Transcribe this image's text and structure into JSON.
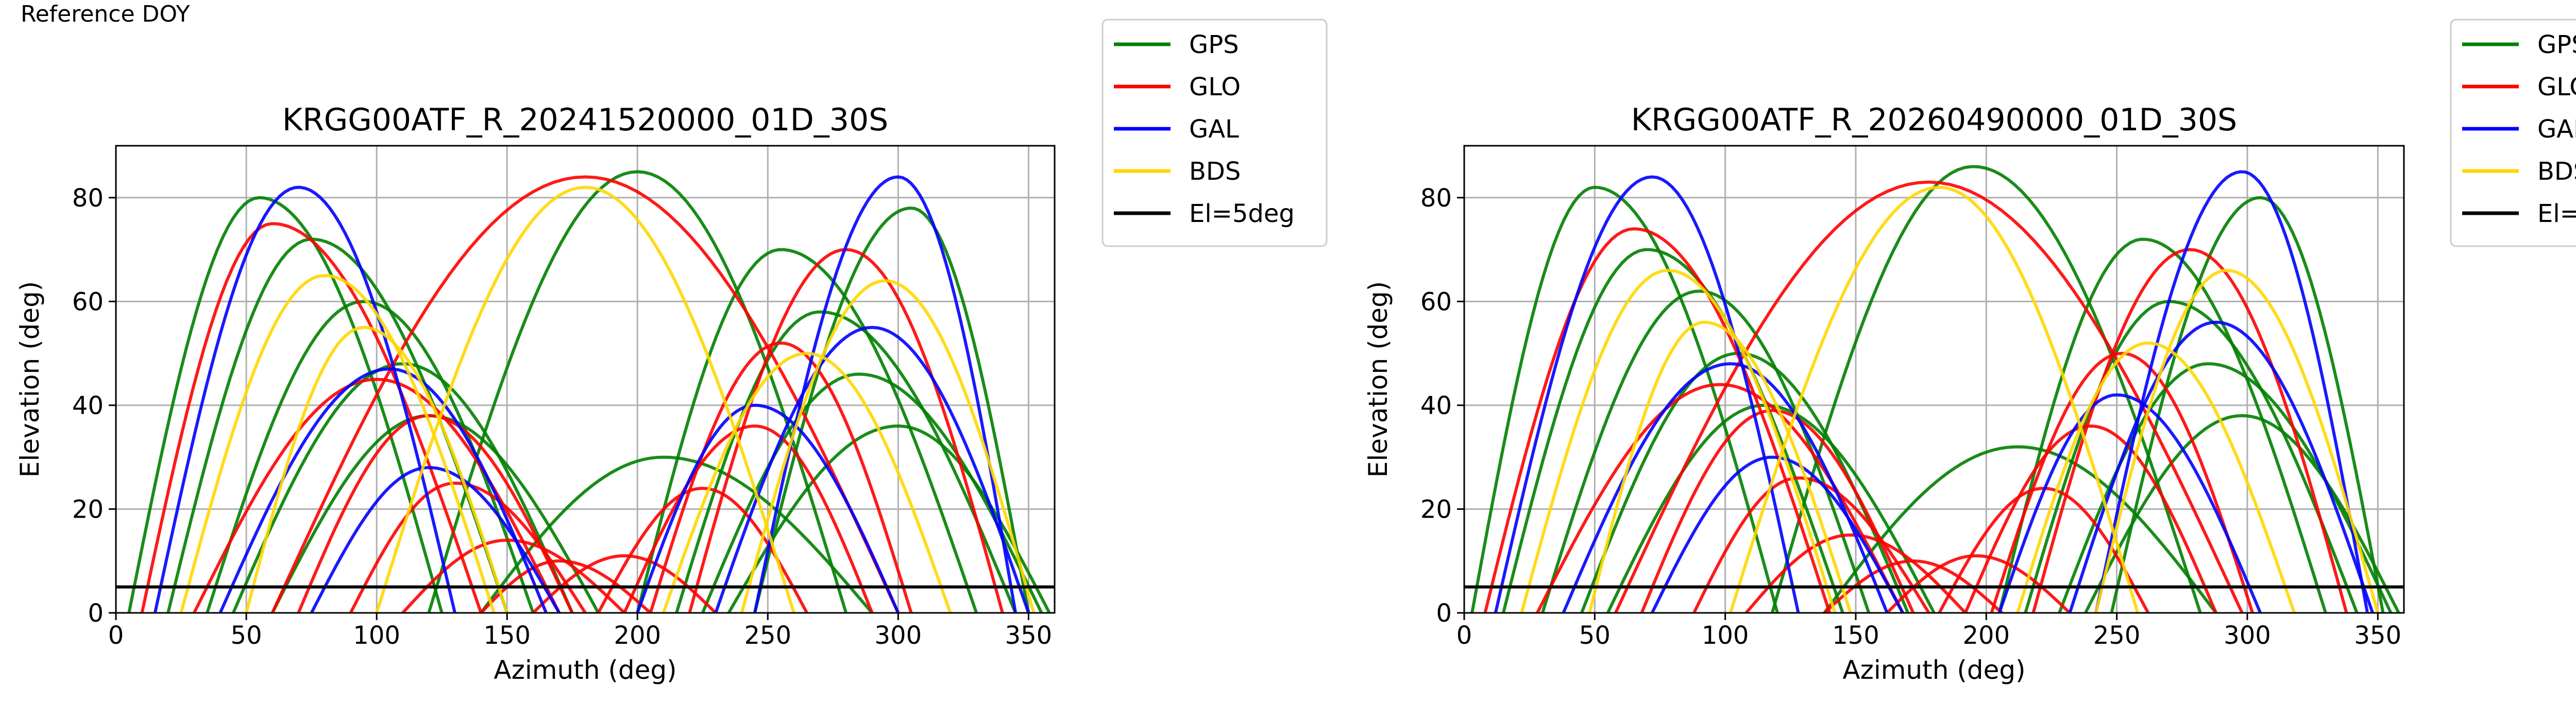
{
  "figure": {
    "header": "Reference DOY"
  },
  "legend": [
    {
      "label": "GPS",
      "color": "#008000",
      "icon": "line-swatch"
    },
    {
      "label": "GLO",
      "color": "#ff0000",
      "icon": "line-swatch"
    },
    {
      "label": "GAL",
      "color": "#0000ff",
      "icon": "line-swatch"
    },
    {
      "label": "BDS",
      "color": "#ffd700",
      "icon": "line-swatch"
    },
    {
      "label": "El=5deg",
      "color": "#000000",
      "icon": "line-swatch"
    }
  ],
  "chart_data": [
    {
      "type": "scatter",
      "title": "KRGG00ATF_R_20241520000_01D_30S",
      "xlabel": "Azimuth (deg)",
      "ylabel": "Elevation (deg)",
      "xlim": [
        0,
        360
      ],
      "ylim": [
        0,
        90
      ],
      "xticks": [
        0,
        50,
        100,
        150,
        200,
        250,
        300,
        350
      ],
      "yticks": [
        0,
        20,
        40,
        60,
        80
      ],
      "grid": true,
      "legend_position": "outside-right-top",
      "reference_line": {
        "name": "El=5deg",
        "y": 5,
        "color": "#000000"
      },
      "series": [
        {
          "name": "GPS",
          "color": "#008000",
          "tracks": [
            {
              "rise_az": 5,
              "peak_az": 55,
              "set_az": 125,
              "peak_el": 80
            },
            {
              "rise_az": 20,
              "peak_az": 75,
              "set_az": 150,
              "peak_el": 72
            },
            {
              "rise_az": 35,
              "peak_az": 95,
              "set_az": 160,
              "peak_el": 60
            },
            {
              "rise_az": 45,
              "peak_az": 110,
              "set_az": 175,
              "peak_el": 48
            },
            {
              "rise_az": 60,
              "peak_az": 120,
              "set_az": 185,
              "peak_el": 38
            },
            {
              "rise_az": 200,
              "peak_az": 255,
              "set_az": 330,
              "peak_el": 70
            },
            {
              "rise_az": 215,
              "peak_az": 270,
              "set_az": 345,
              "peak_el": 58
            },
            {
              "rise_az": 225,
              "peak_az": 285,
              "set_az": 355,
              "peak_el": 46
            },
            {
              "rise_az": 235,
              "peak_az": 300,
              "set_az": 358,
              "peak_el": 36
            },
            {
              "rise_az": 245,
              "peak_az": 305,
              "set_az": 350,
              "peak_el": 78
            },
            {
              "rise_az": 120,
              "peak_az": 200,
              "set_az": 280,
              "peak_el": 85
            },
            {
              "rise_az": 140,
              "peak_az": 210,
              "set_az": 290,
              "peak_el": 30
            }
          ]
        },
        {
          "name": "GLO",
          "color": "#ff0000",
          "tracks": [
            {
              "rise_az": 10,
              "peak_az": 60,
              "set_az": 140,
              "peak_el": 75
            },
            {
              "rise_az": 30,
              "peak_az": 100,
              "set_az": 170,
              "peak_el": 45
            },
            {
              "rise_az": 70,
              "peak_az": 120,
              "set_az": 175,
              "peak_el": 38
            },
            {
              "rise_az": 90,
              "peak_az": 130,
              "set_az": 180,
              "peak_el": 25
            },
            {
              "rise_az": 110,
              "peak_az": 150,
              "set_az": 195,
              "peak_el": 14
            },
            {
              "rise_az": 140,
              "peak_az": 170,
              "set_az": 205,
              "peak_el": 10
            },
            {
              "rise_az": 160,
              "peak_az": 195,
              "set_az": 230,
              "peak_el": 11
            },
            {
              "rise_az": 185,
              "peak_az": 225,
              "set_az": 265,
              "peak_el": 24
            },
            {
              "rise_az": 195,
              "peak_az": 245,
              "set_az": 290,
              "peak_el": 36
            },
            {
              "rise_az": 205,
              "peak_az": 255,
              "set_az": 305,
              "peak_el": 52
            },
            {
              "rise_az": 220,
              "peak_az": 280,
              "set_az": 340,
              "peak_el": 70
            },
            {
              "rise_az": 60,
              "peak_az": 180,
              "set_az": 300,
              "peak_el": 84
            }
          ]
        },
        {
          "name": "GAL",
          "color": "#0000ff",
          "tracks": [
            {
              "rise_az": 15,
              "peak_az": 70,
              "set_az": 130,
              "peak_el": 82
            },
            {
              "rise_az": 40,
              "peak_az": 105,
              "set_az": 165,
              "peak_el": 47
            },
            {
              "rise_az": 75,
              "peak_az": 120,
              "set_az": 170,
              "peak_el": 28
            },
            {
              "rise_az": 200,
              "peak_az": 245,
              "set_az": 300,
              "peak_el": 40
            },
            {
              "rise_az": 230,
              "peak_az": 290,
              "set_az": 350,
              "peak_el": 55
            },
            {
              "rise_az": 245,
              "peak_az": 300,
              "set_az": 345,
              "peak_el": 84
            }
          ]
        },
        {
          "name": "BDS",
          "color": "#ffd700",
          "tracks": [
            {
              "rise_az": 25,
              "peak_az": 80,
              "set_az": 145,
              "peak_el": 65
            },
            {
              "rise_az": 50,
              "peak_az": 95,
              "set_az": 150,
              "peak_el": 55
            },
            {
              "rise_az": 210,
              "peak_az": 265,
              "set_az": 320,
              "peak_el": 50
            },
            {
              "rise_az": 240,
              "peak_az": 295,
              "set_az": 352,
              "peak_el": 64
            },
            {
              "rise_az": 100,
              "peak_az": 180,
              "set_az": 260,
              "peak_el": 82
            }
          ]
        }
      ]
    },
    {
      "type": "scatter",
      "title": "KRGG00ATF_R_20260490000_01D_30S",
      "xlabel": "Azimuth (deg)",
      "ylabel": "Elevation (deg)",
      "xlim": [
        0,
        360
      ],
      "ylim": [
        0,
        90
      ],
      "xticks": [
        0,
        50,
        100,
        150,
        200,
        250,
        300,
        350
      ],
      "yticks": [
        0,
        20,
        40,
        60,
        80
      ],
      "grid": true,
      "legend_position": "outside-right-top",
      "reference_line": {
        "name": "El=5deg",
        "y": 5,
        "color": "#000000"
      },
      "series": [
        {
          "name": "GPS",
          "color": "#008000",
          "tracks": [
            {
              "rise_az": 3,
              "peak_az": 50,
              "set_az": 120,
              "peak_el": 82
            },
            {
              "rise_az": 15,
              "peak_az": 70,
              "set_az": 145,
              "peak_el": 70
            },
            {
              "rise_az": 30,
              "peak_az": 90,
              "set_az": 155,
              "peak_el": 62
            },
            {
              "rise_az": 45,
              "peak_az": 105,
              "set_az": 170,
              "peak_el": 50
            },
            {
              "rise_az": 55,
              "peak_az": 115,
              "set_az": 180,
              "peak_el": 40
            },
            {
              "rise_az": 205,
              "peak_az": 260,
              "set_az": 330,
              "peak_el": 72
            },
            {
              "rise_az": 215,
              "peak_az": 270,
              "set_az": 342,
              "peak_el": 60
            },
            {
              "rise_az": 228,
              "peak_az": 285,
              "set_az": 355,
              "peak_el": 48
            },
            {
              "rise_az": 238,
              "peak_az": 298,
              "set_az": 358,
              "peak_el": 38
            },
            {
              "rise_az": 248,
              "peak_az": 305,
              "set_az": 352,
              "peak_el": 80
            },
            {
              "rise_az": 118,
              "peak_az": 195,
              "set_az": 282,
              "peak_el": 86
            },
            {
              "rise_az": 138,
              "peak_az": 212,
              "set_az": 288,
              "peak_el": 32
            }
          ]
        },
        {
          "name": "GLO",
          "color": "#ff0000",
          "tracks": [
            {
              "rise_az": 8,
              "peak_az": 65,
              "set_az": 140,
              "peak_el": 74
            },
            {
              "rise_az": 28,
              "peak_az": 98,
              "set_az": 168,
              "peak_el": 44
            },
            {
              "rise_az": 68,
              "peak_az": 118,
              "set_az": 172,
              "peak_el": 39
            },
            {
              "rise_az": 88,
              "peak_az": 128,
              "set_az": 178,
              "peak_el": 26
            },
            {
              "rise_az": 108,
              "peak_az": 148,
              "set_az": 192,
              "peak_el": 15
            },
            {
              "rise_az": 138,
              "peak_az": 172,
              "set_az": 206,
              "peak_el": 10
            },
            {
              "rise_az": 162,
              "peak_az": 196,
              "set_az": 232,
              "peak_el": 11
            },
            {
              "rise_az": 182,
              "peak_az": 222,
              "set_az": 262,
              "peak_el": 24
            },
            {
              "rise_az": 192,
              "peak_az": 240,
              "set_az": 288,
              "peak_el": 36
            },
            {
              "rise_az": 202,
              "peak_az": 252,
              "set_az": 302,
              "peak_el": 50
            },
            {
              "rise_az": 218,
              "peak_az": 278,
              "set_az": 338,
              "peak_el": 70
            },
            {
              "rise_az": 58,
              "peak_az": 178,
              "set_az": 298,
              "peak_el": 83
            }
          ]
        },
        {
          "name": "GAL",
          "color": "#0000ff",
          "tracks": [
            {
              "rise_az": 12,
              "peak_az": 72,
              "set_az": 128,
              "peak_el": 84
            },
            {
              "rise_az": 38,
              "peak_az": 102,
              "set_az": 162,
              "peak_el": 48
            },
            {
              "rise_az": 72,
              "peak_az": 118,
              "set_az": 168,
              "peak_el": 30
            },
            {
              "rise_az": 205,
              "peak_az": 250,
              "set_az": 305,
              "peak_el": 42
            },
            {
              "rise_az": 232,
              "peak_az": 288,
              "set_az": 348,
              "peak_el": 56
            },
            {
              "rise_az": 242,
              "peak_az": 298,
              "set_az": 346,
              "peak_el": 85
            }
          ]
        },
        {
          "name": "BDS",
          "color": "#ffd700",
          "tracks": [
            {
              "rise_az": 22,
              "peak_az": 78,
              "set_az": 142,
              "peak_el": 66
            },
            {
              "rise_az": 48,
              "peak_az": 92,
              "set_az": 148,
              "peak_el": 56
            },
            {
              "rise_az": 212,
              "peak_az": 262,
              "set_az": 318,
              "peak_el": 52
            },
            {
              "rise_az": 242,
              "peak_az": 292,
              "set_az": 350,
              "peak_el": 66
            },
            {
              "rise_az": 102,
              "peak_az": 182,
              "set_az": 258,
              "peak_el": 82
            }
          ]
        }
      ]
    }
  ]
}
